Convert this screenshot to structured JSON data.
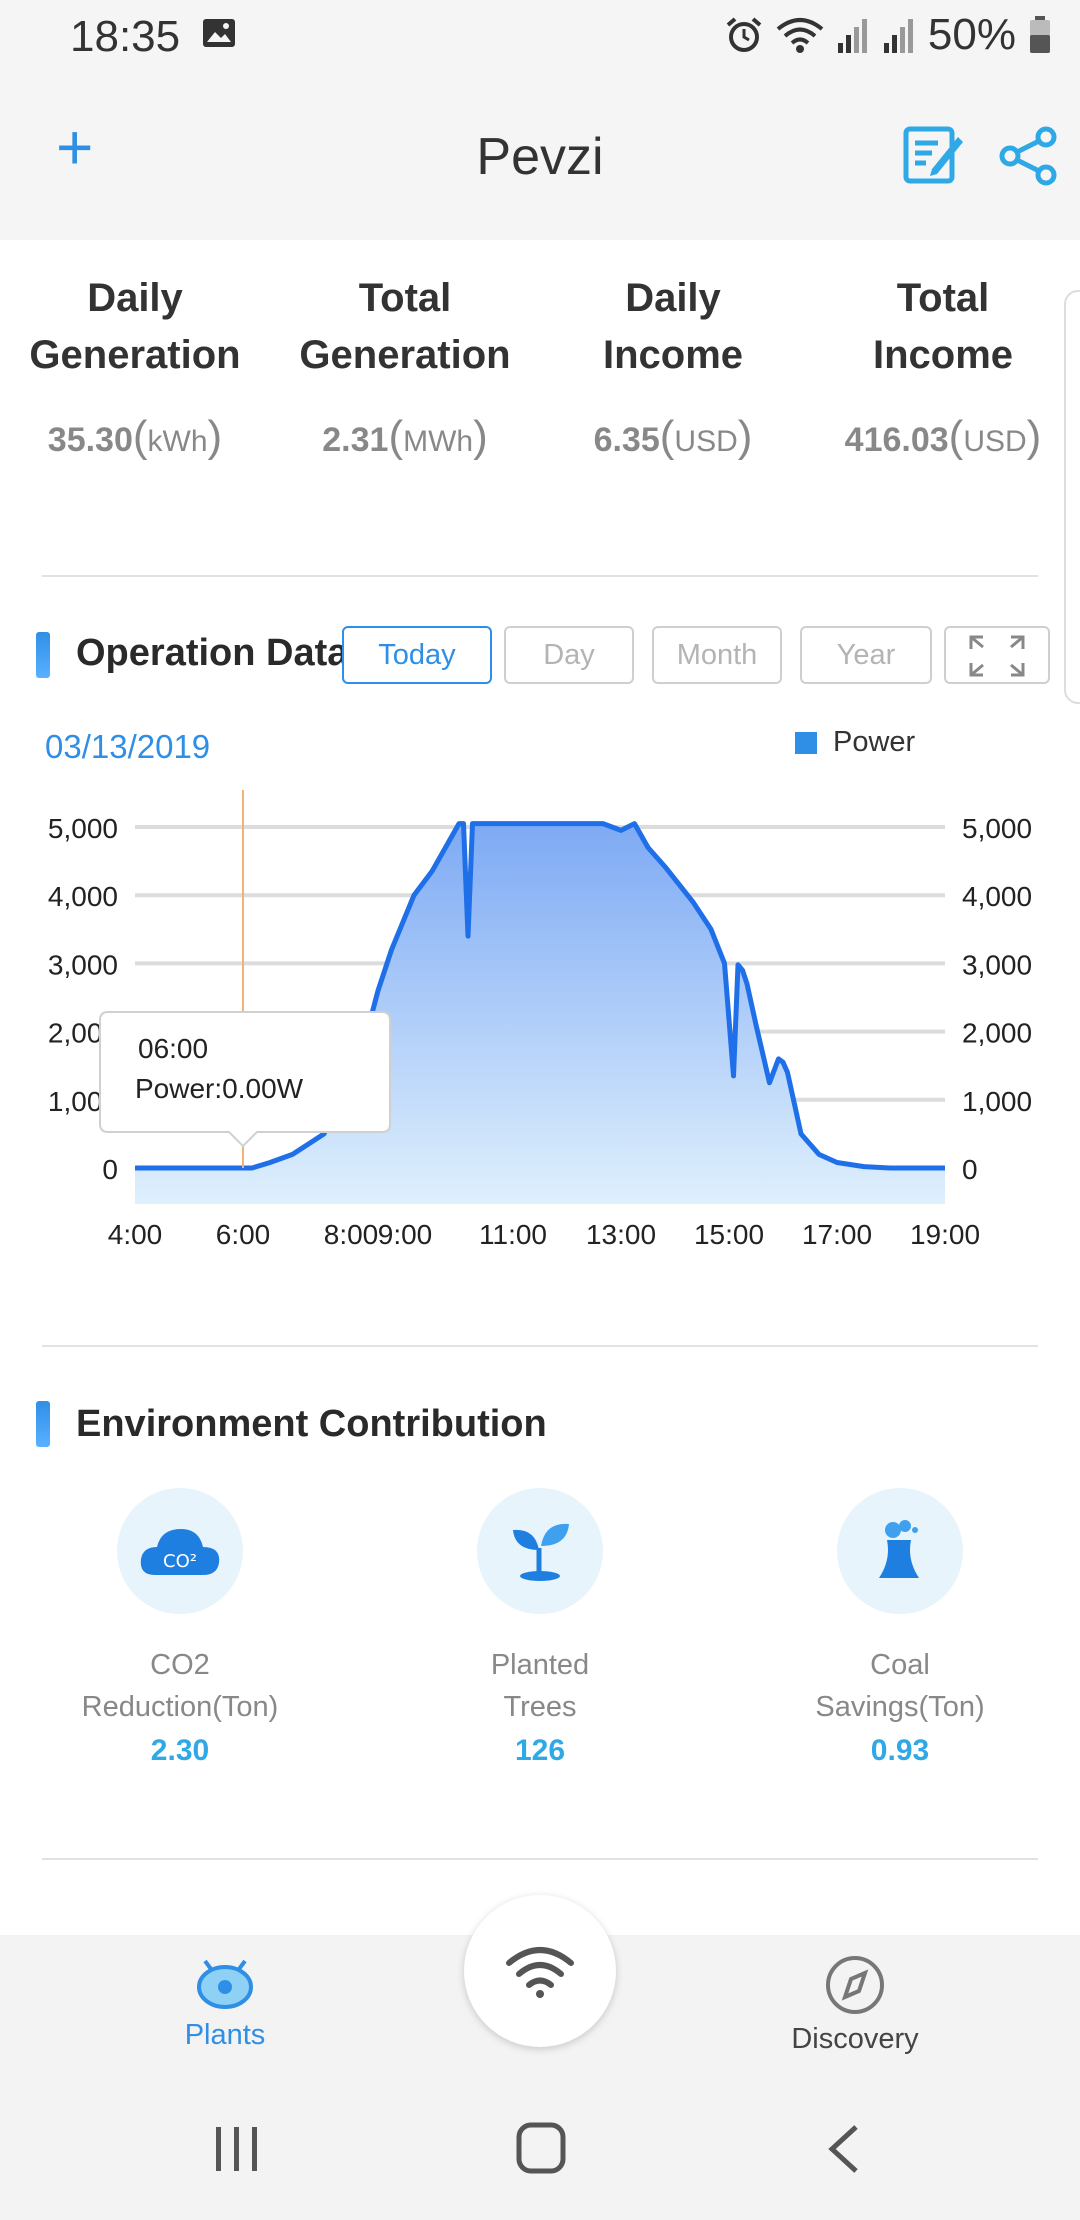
{
  "status_bar": {
    "time": "18:35",
    "battery": "50%"
  },
  "header": {
    "title": "Pevzi"
  },
  "stats": [
    {
      "label_line1": "Daily",
      "label_line2": "Generation",
      "value": "35.30",
      "unit": "kWh"
    },
    {
      "label_line1": "Total",
      "label_line2": "Generation",
      "value": "2.31",
      "unit": "MWh"
    },
    {
      "label_line1": "Daily",
      "label_line2": "Income",
      "value": "6.35",
      "unit": "USD"
    },
    {
      "label_line1": "Total",
      "label_line2": "Income",
      "value": "416.03",
      "unit": "USD"
    }
  ],
  "operation": {
    "title": "Operation Data",
    "tabs": [
      "Today",
      "Day",
      "Month",
      "Year"
    ],
    "active_tab": "Today",
    "date": "03/13/2019",
    "legend": "Power"
  },
  "tooltip": {
    "time": "06:00",
    "text": "Power:0.00W"
  },
  "chart_data": {
    "type": "area",
    "series": [
      {
        "name": "Power",
        "x": [
          "4:00",
          "6:10",
          "6:30",
          "6:55",
          "7:30",
          "7:50",
          "8:15",
          "8:30",
          "8:45",
          "9:10",
          "9:30",
          "9:45",
          "10:00",
          "10:05",
          "10:10",
          "10:15",
          "10:30",
          "11:00",
          "12:00",
          "12:40",
          "13:00",
          "13:15",
          "13:30",
          "13:50",
          "14:20",
          "14:40",
          "14:55",
          "15:05",
          "15:10",
          "15:15",
          "15:20",
          "15:30",
          "15:45",
          "15:55",
          "16:00",
          "16:05",
          "16:20",
          "16:40",
          "17:00",
          "17:30",
          "18:00",
          "19:00"
        ],
        "values": [
          0,
          0,
          80,
          200,
          500,
          1100,
          1850,
          2600,
          3200,
          4000,
          4350,
          4700,
          5050,
          5050,
          3400,
          5050,
          5050,
          5050,
          5050,
          5050,
          4950,
          5050,
          4700,
          4400,
          3900,
          3500,
          3000,
          1350,
          2980,
          2900,
          2700,
          2100,
          1250,
          1600,
          1550,
          1400,
          500,
          200,
          80,
          20,
          0,
          0
        ]
      }
    ],
    "x_ticks": [
      "4:00",
      "6:00",
      "8:00",
      "9:00",
      "11:00",
      "13:00",
      "15:00",
      "17:00",
      "19:00"
    ],
    "y_ticks": [
      "0",
      "1,000",
      "2,000",
      "3,000",
      "4,000",
      "5,000"
    ],
    "ylim": [
      0,
      5000
    ],
    "grid": true,
    "legend_position": "top-right",
    "colors": {
      "line": "#1f6fe8",
      "fill_top": "#7eaaf4",
      "fill_bottom": "#dff0fd"
    }
  },
  "environment": {
    "title": "Environment Contribution",
    "items": [
      {
        "line1": "CO2",
        "line2": "Reduction(Ton)",
        "value": "2.30",
        "icon": "cloud-co2-icon"
      },
      {
        "line1": "Planted",
        "line2": "Trees",
        "value": "126",
        "icon": "sprout-icon"
      },
      {
        "line1": "Coal",
        "line2": "Savings(Ton)",
        "value": "0.93",
        "icon": "factory-chimney-icon"
      }
    ]
  },
  "bottom_nav": {
    "plants": "Plants",
    "discovery": "Discovery"
  },
  "colors": {
    "accent": "#2f8fe6",
    "value_blue": "#2fa8e6"
  }
}
